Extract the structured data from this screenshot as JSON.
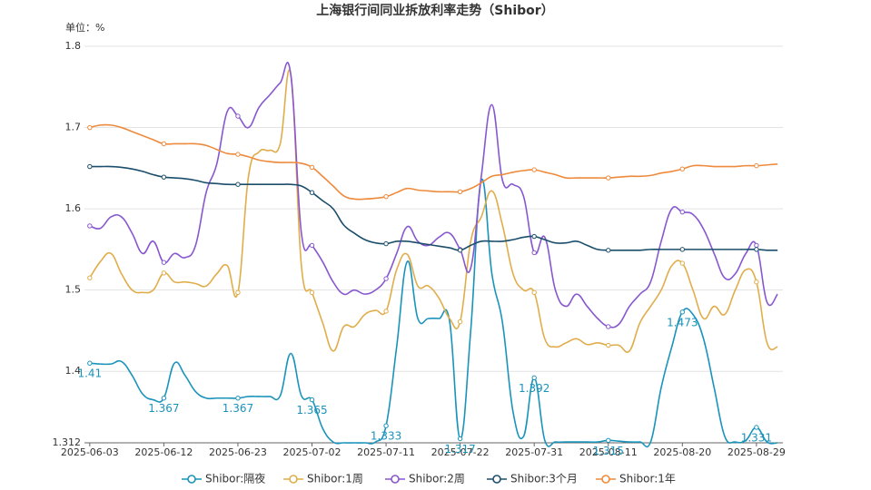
{
  "chart_data": {
    "type": "line",
    "title": "上海银行间同业拆放利率走势（Shibor）",
    "unit_label": "单位：%",
    "categories": [
      "2025-06-03",
      null,
      null,
      null,
      null,
      null,
      null,
      "2025-06-12",
      null,
      null,
      null,
      null,
      null,
      null,
      "2025-06-23",
      null,
      null,
      null,
      null,
      null,
      null,
      "2025-07-02",
      null,
      null,
      null,
      null,
      null,
      null,
      "2025-07-11",
      null,
      null,
      null,
      null,
      null,
      null,
      "2025-07-22",
      null,
      null,
      null,
      null,
      null,
      null,
      "2025-07-31",
      null,
      null,
      null,
      null,
      null,
      null,
      "2025-08-11",
      null,
      null,
      null,
      null,
      null,
      null,
      "2025-08-20",
      null,
      null,
      null,
      null,
      null,
      null,
      "2025-08-29",
      null,
      null
    ],
    "ylim": [
      1.312,
      1.8
    ],
    "yticks": [
      1.312,
      1.4,
      1.5,
      1.6,
      1.7,
      1.8
    ],
    "grid": true,
    "legend": "bottom",
    "series": [
      {
        "name": "Shibor:隔夜",
        "color": "#1a93bb",
        "values": [
          1.41,
          1.409,
          1.409,
          1.412,
          1.395,
          1.372,
          1.365,
          1.367,
          1.41,
          1.395,
          1.375,
          1.367,
          1.367,
          1.367,
          1.367,
          1.369,
          1.369,
          1.369,
          1.37,
          1.422,
          1.37,
          1.365,
          1.33,
          1.313,
          1.312,
          1.312,
          1.312,
          1.313,
          1.333,
          1.43,
          1.535,
          1.465,
          1.465,
          1.465,
          1.462,
          1.317,
          1.45,
          1.635,
          1.52,
          1.46,
          1.35,
          1.32,
          1.392,
          1.315,
          1.313,
          1.313,
          1.313,
          1.313,
          1.313,
          1.315,
          1.314,
          1.313,
          1.313,
          1.313,
          1.38,
          1.43,
          1.473,
          1.47,
          1.44,
          1.38,
          1.32,
          1.313,
          1.315,
          1.331,
          1.313,
          1.312
        ],
        "value_labels": [
          "1.41",
          null,
          null,
          null,
          null,
          null,
          null,
          "1.367",
          null,
          null,
          null,
          null,
          null,
          null,
          "1.367",
          null,
          null,
          null,
          null,
          null,
          null,
          "1.365",
          null,
          null,
          null,
          null,
          null,
          null,
          "1.333",
          null,
          null,
          null,
          null,
          null,
          null,
          "1.317",
          null,
          null,
          null,
          null,
          null,
          null,
          "1.392",
          null,
          null,
          null,
          null,
          null,
          null,
          "1.315",
          null,
          null,
          null,
          null,
          null,
          null,
          "1.473",
          null,
          null,
          null,
          null,
          null,
          null,
          "1.331",
          null,
          null
        ]
      },
      {
        "name": "Shibor:1周",
        "color": "#e0ad4a",
        "values": [
          1.515,
          1.535,
          1.545,
          1.52,
          1.5,
          1.497,
          1.5,
          1.521,
          1.51,
          1.51,
          1.508,
          1.505,
          1.52,
          1.53,
          1.497,
          1.64,
          1.67,
          1.672,
          1.68,
          1.765,
          1.53,
          1.497,
          1.46,
          1.425,
          1.455,
          1.455,
          1.47,
          1.475,
          1.474,
          1.525,
          1.544,
          1.505,
          1.505,
          1.49,
          1.465,
          1.461,
          1.56,
          1.59,
          1.622,
          1.58,
          1.52,
          1.5,
          1.497,
          1.44,
          1.43,
          1.435,
          1.44,
          1.433,
          1.435,
          1.432,
          1.432,
          1.425,
          1.46,
          1.48,
          1.5,
          1.53,
          1.533,
          1.5,
          1.465,
          1.48,
          1.47,
          1.5,
          1.525,
          1.51,
          1.435,
          1.43
        ]
      },
      {
        "name": "Shibor:2周",
        "color": "#8857cf",
        "values": [
          1.579,
          1.576,
          1.59,
          1.59,
          1.57,
          1.545,
          1.56,
          1.534,
          1.545,
          1.54,
          1.555,
          1.62,
          1.655,
          1.72,
          1.714,
          1.7,
          1.725,
          1.74,
          1.755,
          1.765,
          1.57,
          1.555,
          1.535,
          1.51,
          1.495,
          1.5,
          1.495,
          1.5,
          1.514,
          1.545,
          1.578,
          1.56,
          1.555,
          1.565,
          1.57,
          1.55,
          1.527,
          1.64,
          1.728,
          1.635,
          1.63,
          1.615,
          1.546,
          1.565,
          1.5,
          1.48,
          1.495,
          1.48,
          1.465,
          1.455,
          1.458,
          1.48,
          1.495,
          1.51,
          1.56,
          1.6,
          1.596,
          1.593,
          1.575,
          1.545,
          1.515,
          1.52,
          1.545,
          1.555,
          1.485,
          1.495
        ]
      },
      {
        "name": "Shibor:3个月",
        "color": "#1b4e6b",
        "values": [
          1.652,
          1.652,
          1.652,
          1.651,
          1.649,
          1.646,
          1.642,
          1.639,
          1.638,
          1.637,
          1.635,
          1.632,
          1.631,
          1.63,
          1.63,
          1.63,
          1.63,
          1.63,
          1.63,
          1.63,
          1.628,
          1.62,
          1.61,
          1.6,
          1.58,
          1.57,
          1.562,
          1.558,
          1.557,
          1.56,
          1.56,
          1.558,
          1.556,
          1.554,
          1.552,
          1.549,
          1.555,
          1.56,
          1.56,
          1.56,
          1.562,
          1.565,
          1.566,
          1.562,
          1.558,
          1.558,
          1.56,
          1.555,
          1.55,
          1.549,
          1.549,
          1.549,
          1.549,
          1.55,
          1.55,
          1.55,
          1.55,
          1.55,
          1.55,
          1.55,
          1.55,
          1.55,
          1.55,
          1.55,
          1.549,
          1.549
        ]
      },
      {
        "name": "Shibor:1年",
        "color": "#ee8a3c",
        "values": [
          1.7,
          1.703,
          1.703,
          1.7,
          1.695,
          1.69,
          1.685,
          1.68,
          1.68,
          1.68,
          1.68,
          1.678,
          1.673,
          1.668,
          1.667,
          1.664,
          1.66,
          1.658,
          1.657,
          1.657,
          1.656,
          1.651,
          1.64,
          1.628,
          1.616,
          1.612,
          1.612,
          1.613,
          1.615,
          1.62,
          1.625,
          1.623,
          1.622,
          1.621,
          1.621,
          1.621,
          1.625,
          1.632,
          1.64,
          1.642,
          1.645,
          1.647,
          1.648,
          1.645,
          1.642,
          1.638,
          1.638,
          1.638,
          1.638,
          1.638,
          1.639,
          1.64,
          1.64,
          1.641,
          1.644,
          1.646,
          1.649,
          1.653,
          1.653,
          1.652,
          1.652,
          1.652,
          1.653,
          1.653,
          1.654,
          1.655
        ]
      }
    ]
  }
}
